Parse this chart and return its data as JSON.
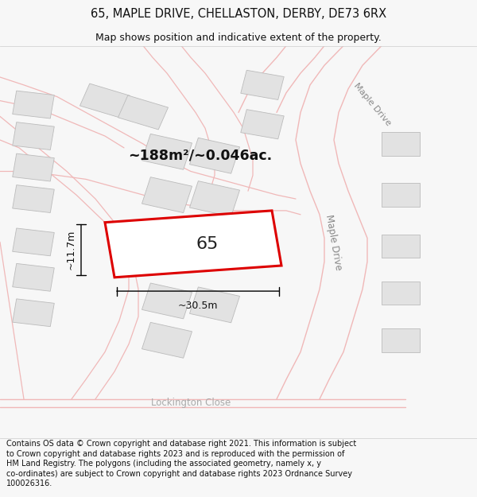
{
  "title": "65, MAPLE DRIVE, CHELLASTON, DERBY, DE73 6RX",
  "subtitle": "Map shows position and indicative extent of the property.",
  "footer": "Contains OS data © Crown copyright and database right 2021. This information is subject\nto Crown copyright and database rights 2023 and is reproduced with the permission of\nHM Land Registry. The polygons (including the associated geometry, namely x, y\nco-ordinates) are subject to Crown copyright and database rights 2023 Ordnance Survey\n100026316.",
  "area_text": "~188m²/~0.046ac.",
  "width_label": "~30.5m",
  "height_label": "~11.7m",
  "plot_number": "65",
  "bg_color": "#f7f7f7",
  "map_bg": "#ffffff",
  "plot_edge_color": "#dd0000",
  "neighbor_fill": "#e2e2e2",
  "neighbor_edge": "#bbbbbb",
  "road_line_color": "#f0b8b8",
  "road_label_color": "#aaaaaa",
  "title_fontsize": 10.5,
  "subtitle_fontsize": 9,
  "footer_fontsize": 7.0
}
